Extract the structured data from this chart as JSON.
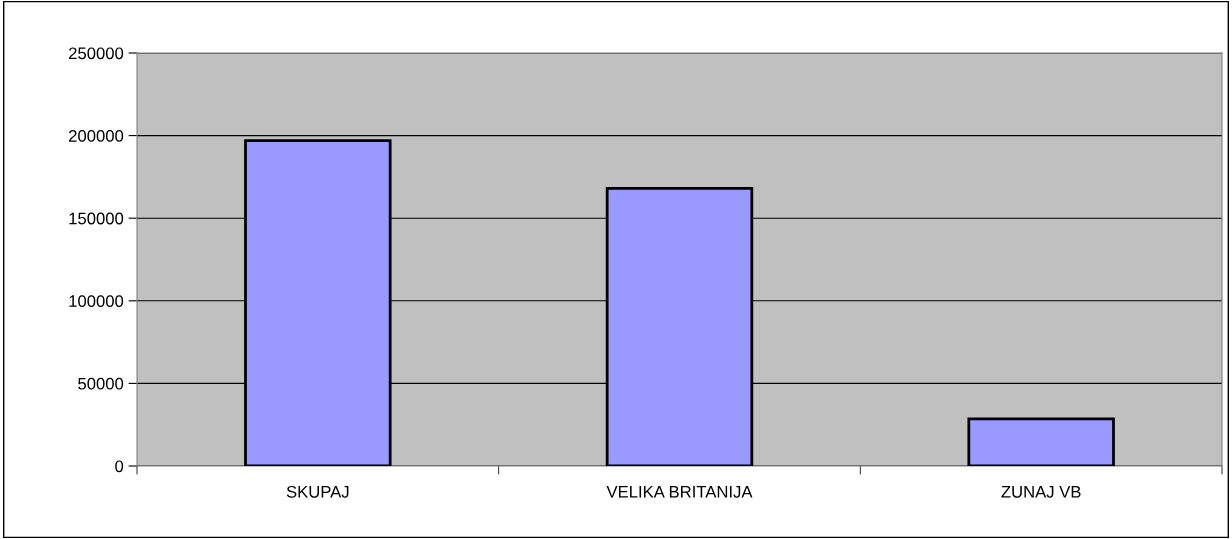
{
  "chart_data": {
    "type": "bar",
    "categories": [
      "SKUPAJ",
      "VELIKA BRITANIJA",
      "ZUNAJ VB"
    ],
    "values": [
      197000,
      168000,
      28500
    ],
    "color": "#9999ff",
    "ylim": [
      0,
      250000
    ],
    "yticks": [
      0,
      50000,
      100000,
      150000,
      200000,
      250000
    ],
    "grid": "y"
  }
}
